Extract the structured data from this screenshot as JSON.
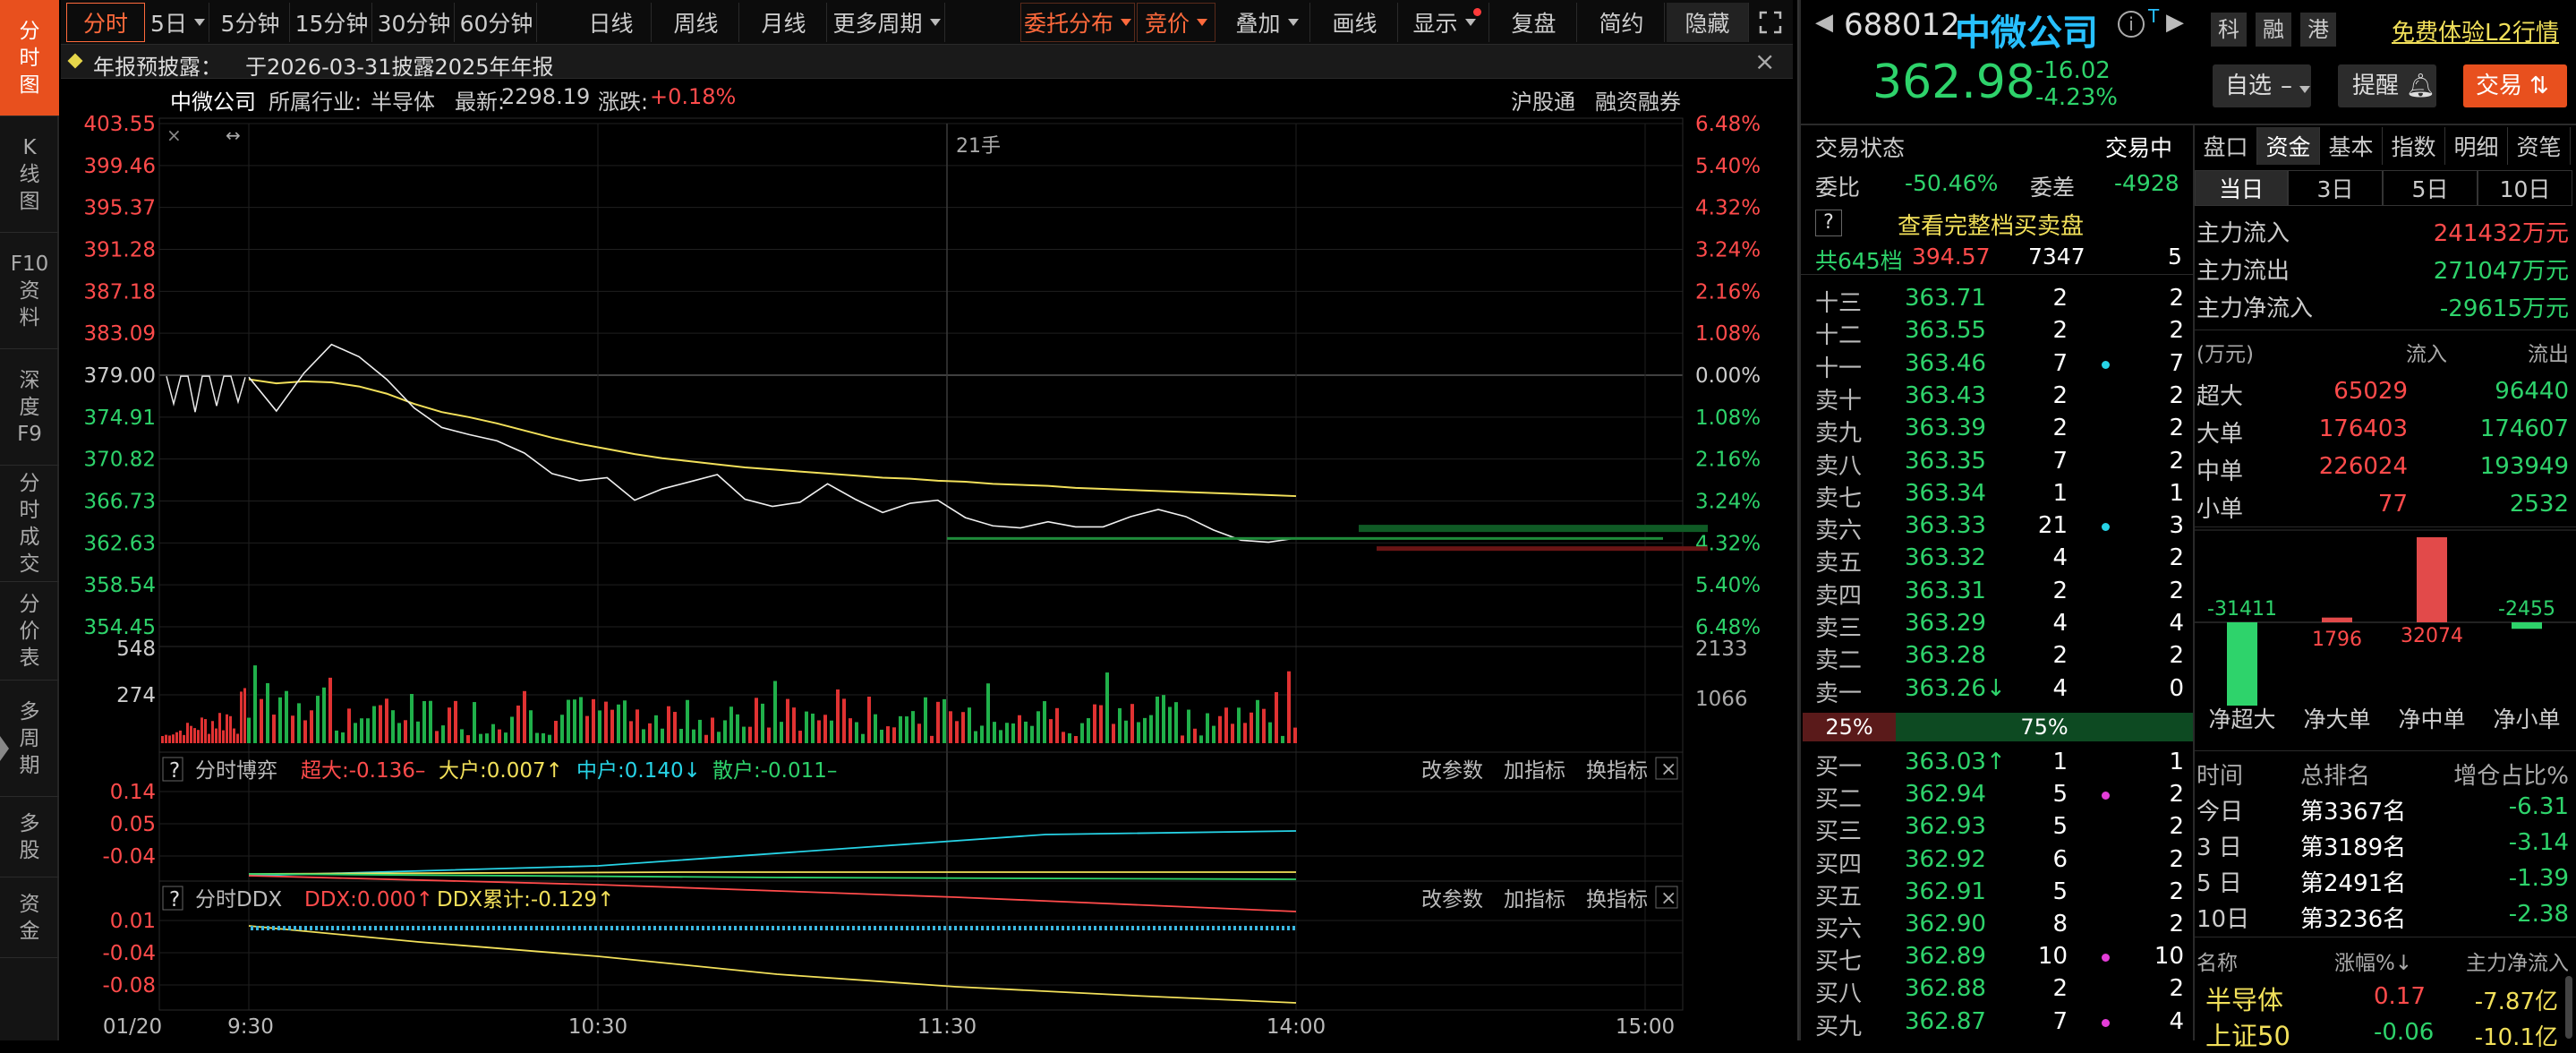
{
  "nav": [
    {
      "label": [
        "分",
        "时",
        "图"
      ],
      "active": true
    },
    {
      "label": [
        "K",
        "线",
        "图"
      ],
      "active": false
    },
    {
      "label": [
        "F10",
        "资",
        "料"
      ],
      "active": false
    },
    {
      "label": [
        "深",
        "度",
        "F9"
      ],
      "active": false
    },
    {
      "label": [
        "分",
        "时",
        "成",
        "交"
      ],
      "active": false
    },
    {
      "label": [
        "分",
        "价",
        "表"
      ],
      "active": false
    },
    {
      "label": [
        "多",
        "周",
        "期"
      ],
      "active": false
    },
    {
      "label": [
        "多",
        "股"
      ],
      "active": false
    },
    {
      "label": [
        "资",
        "金"
      ],
      "active": false
    }
  ],
  "toolbar": {
    "periods": [
      "分时",
      "5日",
      "5分钟",
      "15分钟",
      "30分钟",
      "60分钟",
      "日线",
      "周线",
      "月线",
      "更多周期"
    ],
    "tools": [
      "委托分布",
      "竞价",
      "叠加",
      "画线",
      "显示",
      "复盘",
      "简约",
      "隐藏"
    ]
  },
  "notice": {
    "label": "年报预披露：",
    "text": "于2026-03-31披露2025年年报"
  },
  "chart_info": {
    "name": "中微公司",
    "industry_label": "所属行业:",
    "industry": "半导体",
    "latest_label": "最新:",
    "latest": "2298.19",
    "change_label": "涨跌:",
    "change": "+0.18%",
    "links": [
      "沪股通",
      "融资融券"
    ],
    "volume_marker": "21手"
  },
  "chart_data": {
    "type": "line",
    "title": "",
    "y_left_ticks": [
      "403.55",
      "399.46",
      "395.37",
      "391.28",
      "387.18",
      "383.09",
      "379.00",
      "374.91",
      "370.82",
      "366.73",
      "362.63",
      "358.54",
      "354.45"
    ],
    "y_right_ticks": [
      "6.48%",
      "5.40%",
      "4.32%",
      "3.24%",
      "2.16%",
      "1.08%",
      "0.00%",
      "1.08%",
      "2.16%",
      "3.24%",
      "4.32%",
      "5.40%",
      "6.48%"
    ],
    "ylim": [
      354.45,
      403.55
    ],
    "prev_close": 379.0,
    "x_ticks": [
      "01/20",
      "9:30",
      "10:30",
      "11:30",
      "14:00",
      "15:00"
    ],
    "price": [
      378.8,
      375.5,
      379.2,
      382.0,
      380.8,
      378.6,
      375.8,
      373.9,
      373.2,
      372.6,
      371.4,
      369.4,
      368.7,
      369.0,
      366.8,
      367.9,
      368.6,
      369.3,
      366.9,
      366.2,
      366.6,
      368.4,
      366.9,
      365.6,
      366.5,
      366.8,
      365.1,
      364.3,
      364.1,
      364.7,
      364.2,
      364.2,
      365.2,
      365.9,
      365.2,
      363.9,
      362.9,
      362.7,
      363.1
    ],
    "avg_price": [
      378.6,
      378.2,
      378.4,
      378.3,
      377.9,
      377.2,
      376.2,
      375.4,
      374.9,
      374.3,
      373.6,
      372.9,
      372.3,
      371.8,
      371.3,
      370.9,
      370.6,
      370.3,
      370.0,
      369.8,
      369.6,
      369.4,
      369.2,
      369.0,
      368.9,
      368.7,
      368.6,
      368.4,
      368.3,
      368.2,
      368.0,
      367.9,
      367.8,
      367.7,
      367.6,
      367.5,
      367.4,
      367.3,
      367.2
    ],
    "volume_ticks": [
      "548",
      "274"
    ],
    "volume_right_ticks": [
      "2133",
      "1066"
    ],
    "boyi": {
      "title": "分时博弈",
      "ticks": [
        "0.14",
        "0.05",
        "-0.04"
      ],
      "series": [
        {
          "name": "超大:",
          "value": "-0.136",
          "color": "#ff4b4b"
        },
        {
          "name": "大户:",
          "value": "0.007",
          "color": "#f2e05a"
        },
        {
          "name": "中户:",
          "value": "0.140",
          "color": "#27d3e6"
        },
        {
          "name": "散户:",
          "value": "-0.011",
          "color": "#2ed36b"
        }
      ]
    },
    "ddx": {
      "title": "分时DDX",
      "ticks": [
        "0.01",
        "-0.04",
        "-0.08"
      ],
      "series": [
        {
          "name": "DDX:",
          "value": "0.000",
          "color": "#ff4b4b"
        },
        {
          "name": "DDX累计:",
          "value": "-0.129",
          "color": "#f2e05a"
        }
      ]
    },
    "panel_buttons": [
      "改参数",
      "加指标",
      "换指标"
    ]
  },
  "quote": {
    "code": "688012",
    "name": "中微公司",
    "price": "362.98",
    "change": "-16.02",
    "pct": "-4.23%",
    "badges": [
      "科",
      "融",
      "港"
    ],
    "l2_link": "免费体验L2行情",
    "buttons": [
      "自选",
      "提醒",
      "交易"
    ]
  },
  "status": {
    "label": "交易状态",
    "value": "交易中",
    "weibi_label": "委比",
    "weibi": "-50.46%",
    "weicha_label": "委差",
    "weicha": "-4928",
    "full_link": "查看完整档买卖盘",
    "total_label": "共645档",
    "total_price": "394.57",
    "total_vol": "7347",
    "total_n": "5"
  },
  "sells": [
    {
      "label": "十三",
      "price": "363.71",
      "vol": "2",
      "n": "2",
      "dot": ""
    },
    {
      "label": "十二",
      "price": "363.55",
      "vol": "2",
      "n": "2",
      "dot": ""
    },
    {
      "label": "十一",
      "price": "363.46",
      "vol": "7",
      "n": "7",
      "dot": "c"
    },
    {
      "label": "卖十",
      "price": "363.43",
      "vol": "2",
      "n": "2",
      "dot": ""
    },
    {
      "label": "卖九",
      "price": "363.39",
      "vol": "2",
      "n": "2",
      "dot": ""
    },
    {
      "label": "卖八",
      "price": "363.35",
      "vol": "7",
      "n": "2",
      "dot": ""
    },
    {
      "label": "卖七",
      "price": "363.34",
      "vol": "1",
      "n": "1",
      "dot": ""
    },
    {
      "label": "卖六",
      "price": "363.33",
      "vol": "21",
      "n": "3",
      "dot": "c"
    },
    {
      "label": "卖五",
      "price": "363.32",
      "vol": "4",
      "n": "2",
      "dot": ""
    },
    {
      "label": "卖四",
      "price": "363.31",
      "vol": "2",
      "n": "2",
      "dot": ""
    },
    {
      "label": "卖三",
      "price": "363.29",
      "vol": "4",
      "n": "4",
      "dot": ""
    },
    {
      "label": "卖二",
      "price": "363.28",
      "vol": "2",
      "n": "2",
      "dot": ""
    },
    {
      "label": "卖一",
      "price": "363.26↓",
      "vol": "4",
      "n": "0",
      "dot": ""
    }
  ],
  "ratio": {
    "sell": "25%",
    "buy": "75%"
  },
  "buys": [
    {
      "label": "买一",
      "price": "363.03↑",
      "vol": "1",
      "n": "1",
      "dot": ""
    },
    {
      "label": "买二",
      "price": "362.94",
      "vol": "5",
      "n": "2",
      "dot": "m"
    },
    {
      "label": "买三",
      "price": "362.93",
      "vol": "5",
      "n": "2",
      "dot": ""
    },
    {
      "label": "买四",
      "price": "362.92",
      "vol": "6",
      "n": "2",
      "dot": ""
    },
    {
      "label": "买五",
      "price": "362.91",
      "vol": "5",
      "n": "2",
      "dot": ""
    },
    {
      "label": "买六",
      "price": "362.90",
      "vol": "8",
      "n": "2",
      "dot": ""
    },
    {
      "label": "买七",
      "price": "362.89",
      "vol": "10",
      "n": "10",
      "dot": "m"
    },
    {
      "label": "买八",
      "price": "362.88",
      "vol": "2",
      "n": "2",
      "dot": ""
    },
    {
      "label": "买九",
      "price": "362.87",
      "vol": "7",
      "n": "4",
      "dot": "m"
    }
  ],
  "fund": {
    "tabs": [
      "盘口",
      "资金",
      "基本",
      "指数",
      "明细",
      "资笔"
    ],
    "periods": [
      "当日",
      "3日",
      "5日",
      "10日"
    ],
    "main_in_label": "主力流入",
    "main_in": "241432万元",
    "main_out_label": "主力流出",
    "main_out": "271047万元",
    "main_net_label": "主力净流入",
    "main_net": "-29615万元",
    "unit": "(万元)",
    "in_label": "流入",
    "out_label": "流出",
    "rows": [
      {
        "label": "超大",
        "in": "65029",
        "out": "96440"
      },
      {
        "label": "大单",
        "in": "176403",
        "out": "174607"
      },
      {
        "label": "中单",
        "in": "226024",
        "out": "193949"
      },
      {
        "label": "小单",
        "in": "77",
        "out": "2532"
      }
    ],
    "bars": [
      {
        "label": "净超大",
        "value": -31411,
        "text": "-31411"
      },
      {
        "label": "净大单",
        "value": 1796,
        "text": "1796"
      },
      {
        "label": "净中单",
        "value": 32074,
        "text": "32074"
      },
      {
        "label": "净小单",
        "value": -2455,
        "text": "-2455"
      }
    ],
    "rank_headers": [
      "时间",
      "总排名",
      "增仓占比%"
    ],
    "ranks": [
      {
        "period": "今日",
        "rank": "第3367名",
        "pct": "-6.31"
      },
      {
        "period": "3 日",
        "rank": "第3189名",
        "pct": "-3.14"
      },
      {
        "period": "5 日",
        "rank": "第2491名",
        "pct": "-1.39"
      },
      {
        "period": "10日",
        "rank": "第3236名",
        "pct": "-2.38"
      }
    ],
    "sector_headers": [
      "名称",
      "涨幅%↓",
      "主力净流入"
    ],
    "sectors": [
      {
        "name": "半导体",
        "pct": "0.17",
        "net": "-7.87亿"
      },
      {
        "name": "上证50",
        "pct": "-0.06",
        "net": "-10.1亿"
      }
    ]
  }
}
